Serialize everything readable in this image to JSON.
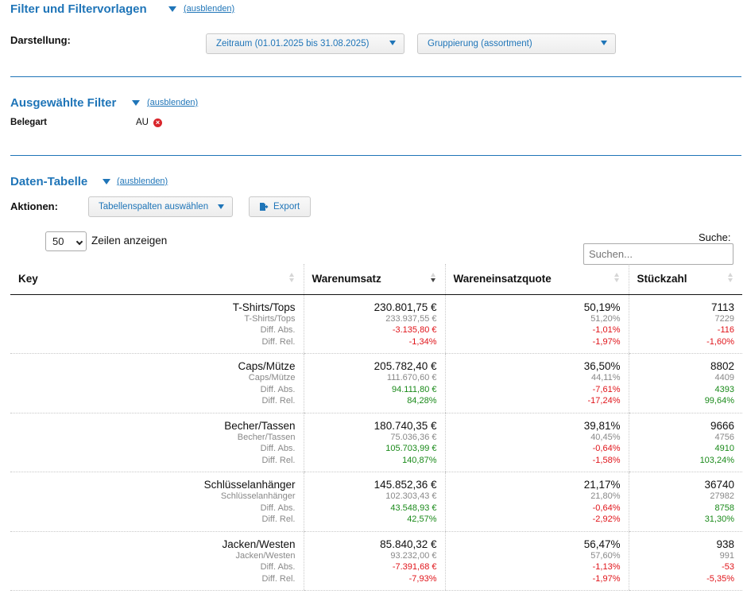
{
  "filter_section": {
    "title": "Filter und Filtervorlagen",
    "hide_link": "(ausblenden)",
    "darstellung_label": "Darstellung:",
    "period_select": "Zeitraum (01.01.2025 bis 31.08.2025)",
    "grouping_select": "Gruppierung (assortment)"
  },
  "selected_filters": {
    "title": "Ausgewählte Filter",
    "hide_link": "(ausblenden)",
    "filter_label": "Belegart",
    "filter_value": "AU"
  },
  "data_table": {
    "title": "Daten-Tabelle",
    "hide_link": "(ausblenden)",
    "actions_label": "Aktionen:",
    "columns_button": "Tabellenspalten auswählen",
    "export_button": "Export",
    "page_length_value": "50",
    "page_length_label": "Zeilen anzeigen",
    "search_label": "Suche:",
    "search_placeholder": "Suchen...",
    "columns": [
      "Key",
      "Warenumsatz",
      "Wareneinsatzquote",
      "Stückzahl"
    ],
    "sorted_column": "Warenumsatz",
    "sort_direction": "descending",
    "rows": [
      {
        "key": [
          "T-Shirts/Tops",
          "T-Shirts/Tops",
          "Diff. Abs.",
          "Diff. Rel."
        ],
        "umsatz": [
          "230.801,75 €",
          "233.937,55 €",
          "-3.135,80 €",
          "-1,34%"
        ],
        "quote": [
          "50,19%",
          "51,20%",
          "-1,01%",
          "-1,97%"
        ],
        "stueck": [
          "7113",
          "7229",
          "-116",
          "-1,60%"
        ]
      },
      {
        "key": [
          "Caps/Mütze",
          "Caps/Mütze",
          "Diff. Abs.",
          "Diff. Rel."
        ],
        "umsatz": [
          "205.782,40 €",
          "111.670,60 €",
          "94.111,80 €",
          "84,28%"
        ],
        "quote": [
          "36,50%",
          "44,11%",
          "-7,61%",
          "-17,24%"
        ],
        "stueck": [
          "8802",
          "4409",
          "4393",
          "99,64%"
        ]
      },
      {
        "key": [
          "Becher/Tassen",
          "Becher/Tassen",
          "Diff. Abs.",
          "Diff. Rel."
        ],
        "umsatz": [
          "180.740,35 €",
          "75.036,36 €",
          "105.703,99 €",
          "140,87%"
        ],
        "quote": [
          "39,81%",
          "40,45%",
          "-0,64%",
          "-1,58%"
        ],
        "stueck": [
          "9666",
          "4756",
          "4910",
          "103,24%"
        ]
      },
      {
        "key": [
          "Schlüsselanhänger",
          "Schlüsselanhänger",
          "Diff. Abs.",
          "Diff. Rel."
        ],
        "umsatz": [
          "145.852,36 €",
          "102.303,43 €",
          "43.548,93 €",
          "42,57%"
        ],
        "quote": [
          "21,17%",
          "21,80%",
          "-0,64%",
          "-2,92%"
        ],
        "stueck": [
          "36740",
          "27982",
          "8758",
          "31,30%"
        ]
      },
      {
        "key": [
          "Jacken/Westen",
          "Jacken/Westen",
          "Diff. Abs.",
          "Diff. Rel."
        ],
        "umsatz": [
          "85.840,32 €",
          "93.232,00 €",
          "-7.391,68 €",
          "-7,93%"
        ],
        "quote": [
          "56,47%",
          "57,60%",
          "-1,13%",
          "-1,97%"
        ],
        "stueck": [
          "938",
          "991",
          "-53",
          "-5,35%"
        ]
      }
    ]
  },
  "colors": {
    "accent": "#1f75b8",
    "positive": "#1a8a1a",
    "negative": "#e0141a",
    "muted": "#888888"
  },
  "icons": {
    "caret": "triangle-down-icon",
    "remove": "remove-circle-icon",
    "export": "export-file-icon",
    "sort": "sort-arrows-icon"
  }
}
